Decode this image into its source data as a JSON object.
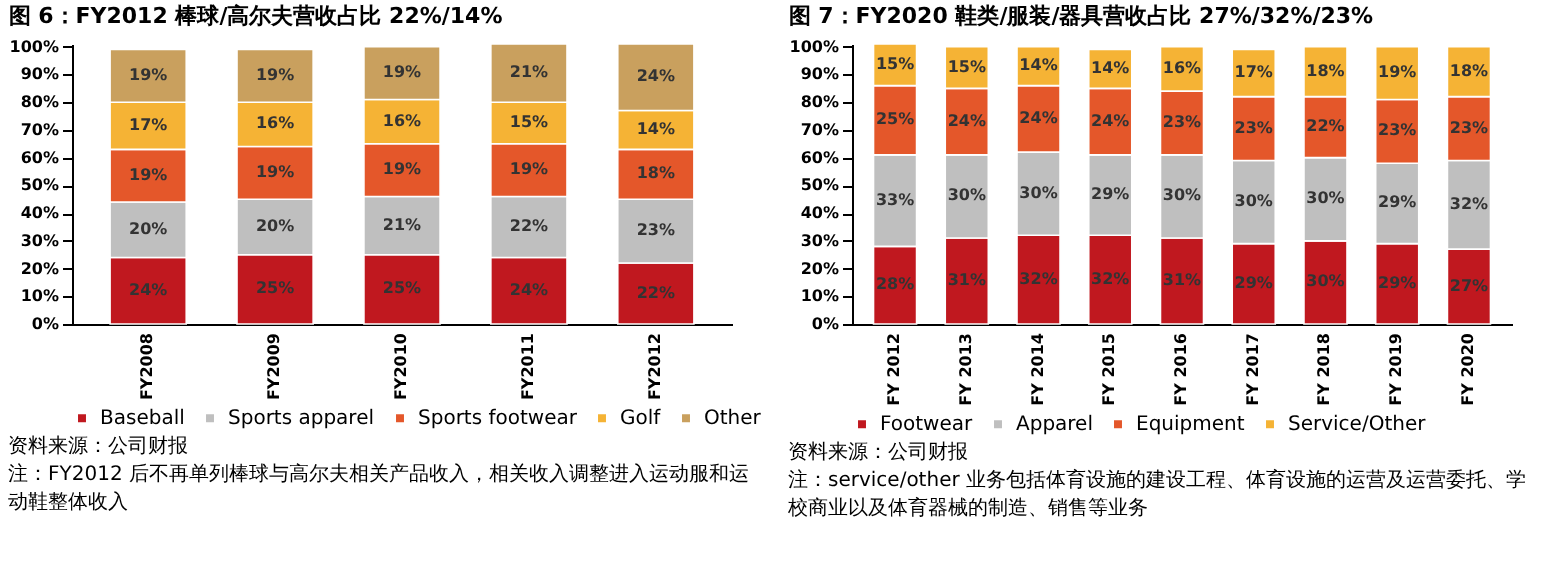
{
  "chart_data": [
    {
      "type": "bar",
      "stacked": true,
      "title": "图 6：FY2012 棒球/高尔夫营收占比 22%/14%",
      "categories": [
        "FY2008",
        "FY2009",
        "FY2010",
        "FY2011",
        "FY2012"
      ],
      "series": [
        {
          "name": "Baseball",
          "color": "#c0181f",
          "values": [
            24,
            25,
            25,
            24,
            22
          ],
          "value_labels": [
            "24%",
            "25%",
            "25%",
            "24%",
            "22%"
          ]
        },
        {
          "name": "Sports apparel",
          "color": "#bfbfbf",
          "values": [
            20,
            20,
            21,
            22,
            23
          ],
          "value_labels": [
            "20%",
            "20%",
            "21%",
            "22%",
            "23%"
          ]
        },
        {
          "name": "Sports footwear",
          "color": "#e4572a",
          "values": [
            19,
            19,
            19,
            19,
            18
          ],
          "value_labels": [
            "19%",
            "19%",
            "19%",
            "19%",
            "18%"
          ]
        },
        {
          "name": "Golf",
          "color": "#f5b335",
          "values": [
            17,
            16,
            16,
            15,
            14
          ],
          "value_labels": [
            "17%",
            "16%",
            "16%",
            "15%",
            "14%"
          ]
        },
        {
          "name": "Other",
          "color": "#c9a05e",
          "values": [
            19,
            19,
            19,
            21,
            24
          ],
          "value_labels": [
            "19%",
            "19%",
            "19%",
            "21%",
            "24%"
          ]
        }
      ],
      "ylim": [
        0,
        101
      ],
      "yticks": [
        {
          "value": 0,
          "label": "0%"
        },
        {
          "value": 10,
          "label": "10%"
        },
        {
          "value": 20,
          "label": "20%"
        },
        {
          "value": 30,
          "label": "30%"
        },
        {
          "value": 40,
          "label": "40%"
        },
        {
          "value": 50,
          "label": "50%"
        },
        {
          "value": 60,
          "label": "60%"
        },
        {
          "value": 70,
          "label": "70%"
        },
        {
          "value": 80,
          "label": "80%"
        },
        {
          "value": 90,
          "label": "90%"
        },
        {
          "value": 100,
          "label": "100%"
        }
      ],
      "grid": false,
      "legend": "bottom",
      "annotations": [
        "资料来源：公司财报",
        "注：FY2012 后不再单列棒球与高尔夫相关产品收入，相关收入调整进入运动服和运动鞋整体收入"
      ]
    },
    {
      "type": "bar",
      "stacked": true,
      "title": "图 7：FY2020 鞋类/服装/器具营收占比 27%/32%/23%",
      "categories": [
        "FY 2012",
        "FY 2013",
        "FY 2014",
        "FY 2015",
        "FY 2016",
        "FY 2017",
        "FY 2018",
        "FY 2019",
        "FY 2020"
      ],
      "series": [
        {
          "name": "Footwear",
          "color": "#c0181f",
          "values": [
            28,
            31,
            32,
            32,
            31,
            29,
            30,
            29,
            27
          ],
          "value_labels": [
            "28%",
            "31%",
            "32%",
            "32%",
            "31%",
            "29%",
            "30%",
            "29%",
            "27%"
          ]
        },
        {
          "name": "Apparel",
          "color": "#bfbfbf",
          "values": [
            33,
            30,
            30,
            29,
            30,
            30,
            30,
            29,
            32
          ],
          "value_labels": [
            "33%",
            "30%",
            "30%",
            "29%",
            "30%",
            "30%",
            "30%",
            "29%",
            "32%"
          ]
        },
        {
          "name": "Equipment",
          "color": "#e4572a",
          "values": [
            25,
            24,
            24,
            24,
            23,
            23,
            22,
            23,
            23
          ],
          "value_labels": [
            "25%",
            "24%",
            "24%",
            "24%",
            "23%",
            "23%",
            "22%",
            "23%",
            "23%"
          ]
        },
        {
          "name": "Service/Other",
          "color": "#f5b335",
          "values": [
            15,
            15,
            14,
            14,
            16,
            17,
            18,
            19,
            18
          ],
          "value_labels": [
            "15%",
            "15%",
            "14%",
            "14%",
            "16%",
            "17%",
            "18%",
            "19%",
            "18%"
          ]
        }
      ],
      "ylim": [
        0,
        101
      ],
      "yticks": [
        {
          "value": 0,
          "label": "0%"
        },
        {
          "value": 10,
          "label": "10%"
        },
        {
          "value": 20,
          "label": "20%"
        },
        {
          "value": 30,
          "label": "30%"
        },
        {
          "value": 40,
          "label": "40%"
        },
        {
          "value": 50,
          "label": "50%"
        },
        {
          "value": 60,
          "label": "60%"
        },
        {
          "value": 70,
          "label": "70%"
        },
        {
          "value": 80,
          "label": "80%"
        },
        {
          "value": 90,
          "label": "90%"
        },
        {
          "value": 100,
          "label": "100%"
        }
      ],
      "grid": false,
      "legend": "bottom",
      "annotations": [
        "资料来源：公司财报",
        "注：service/other 业务包括体育设施的建设工程、体育设施的运营及运营委托、学校商业以及体育器械的制造、销售等业务"
      ]
    }
  ]
}
